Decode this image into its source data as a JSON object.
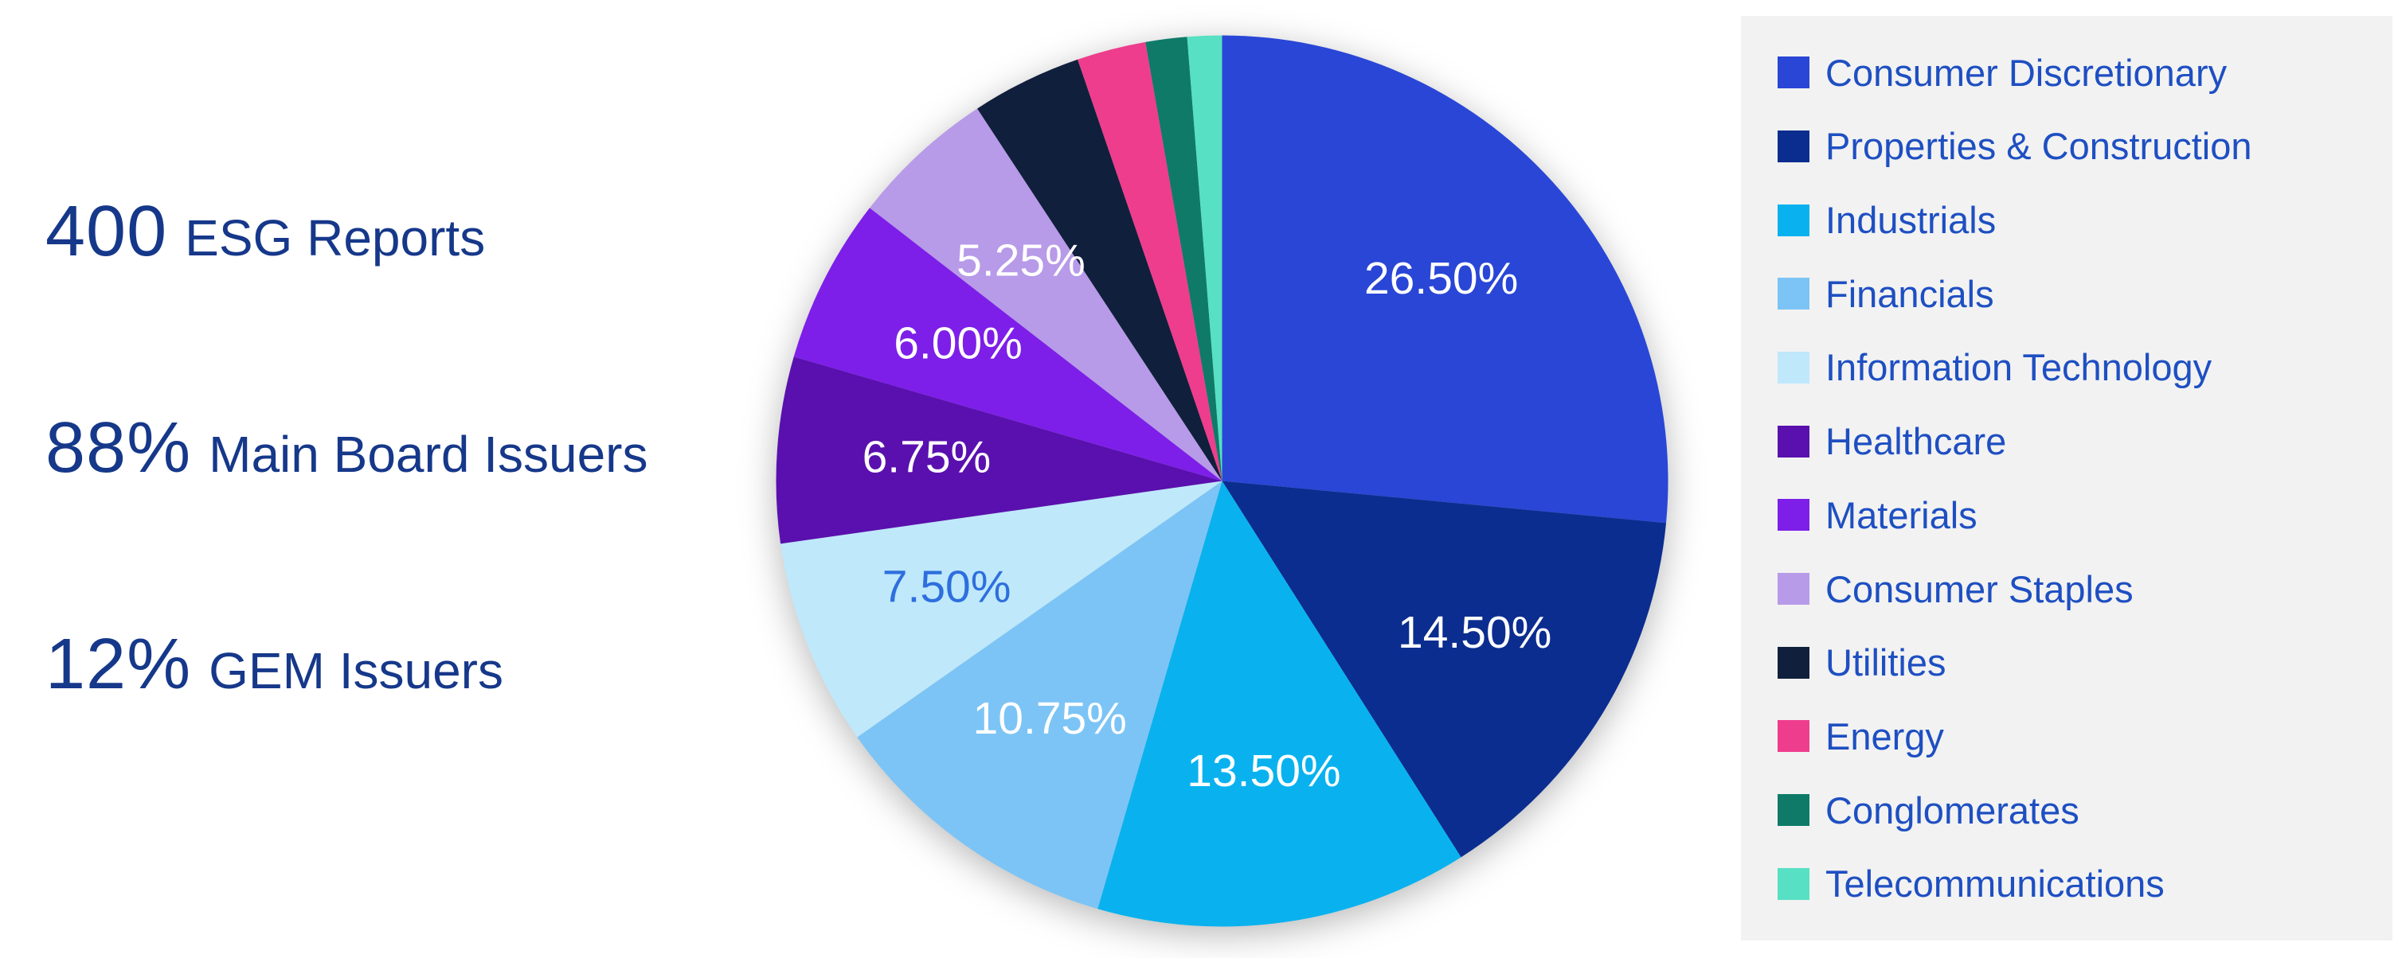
{
  "stats": [
    {
      "value": "400",
      "label": "ESG Reports"
    },
    {
      "value": "88%",
      "label": "Main Board Issuers"
    },
    {
      "value": "12%",
      "label": "GEM Issuers"
    }
  ],
  "chart_data": {
    "type": "pie",
    "title": "",
    "legend_position": "right",
    "start_angle_deg": 0,
    "direction": "clockwise",
    "label_threshold_pct": 5,
    "default_label_color": "#ffffff",
    "legend_background": "#f2f2f2",
    "legend_text_color": "#1e4fc2",
    "stats_text_color": "#16388a",
    "slices": [
      {
        "label": "Consumer Discretionary",
        "value": 26.5,
        "display": "26.50%",
        "color": "#2946d6",
        "label_color": "#ffffff"
      },
      {
        "label": "Properties & Construction",
        "value": 14.5,
        "display": "14.50%",
        "color": "#0b2d8f",
        "label_color": "#ffffff"
      },
      {
        "label": "Industrials",
        "value": 13.5,
        "display": "13.50%",
        "color": "#09b2ef",
        "label_color": "#ffffff"
      },
      {
        "label": "Financials",
        "value": 10.75,
        "display": "10.75%",
        "color": "#7cc4f5",
        "label_color": "#ffffff"
      },
      {
        "label": "Information Technology",
        "value": 7.5,
        "display": "7.50%",
        "color": "#bfe8fb",
        "label_color": "#2e6fdd"
      },
      {
        "label": "Healthcare",
        "value": 6.75,
        "display": "6.75%",
        "color": "#5a10ae",
        "label_color": "#ffffff"
      },
      {
        "label": "Materials",
        "value": 6.0,
        "display": "6.00%",
        "color": "#7d1fe8",
        "label_color": "#ffffff"
      },
      {
        "label": "Consumer Staples",
        "value": 5.25,
        "display": "5.25%",
        "color": "#b79ae8",
        "label_color": "#ffffff"
      },
      {
        "label": "Utilities",
        "value": 4.0,
        "display": "",
        "color": "#101f3c",
        "label_color": "#ffffff"
      },
      {
        "label": "Energy",
        "value": 2.5,
        "display": "",
        "color": "#ee3d8c",
        "label_color": "#ffffff"
      },
      {
        "label": "Conglomerates",
        "value": 1.5,
        "display": "",
        "color": "#0f7a68",
        "label_color": "#ffffff"
      },
      {
        "label": "Telecommunications",
        "value": 1.25,
        "display": "",
        "color": "#57e0c3",
        "label_color": "#ffffff"
      }
    ]
  }
}
